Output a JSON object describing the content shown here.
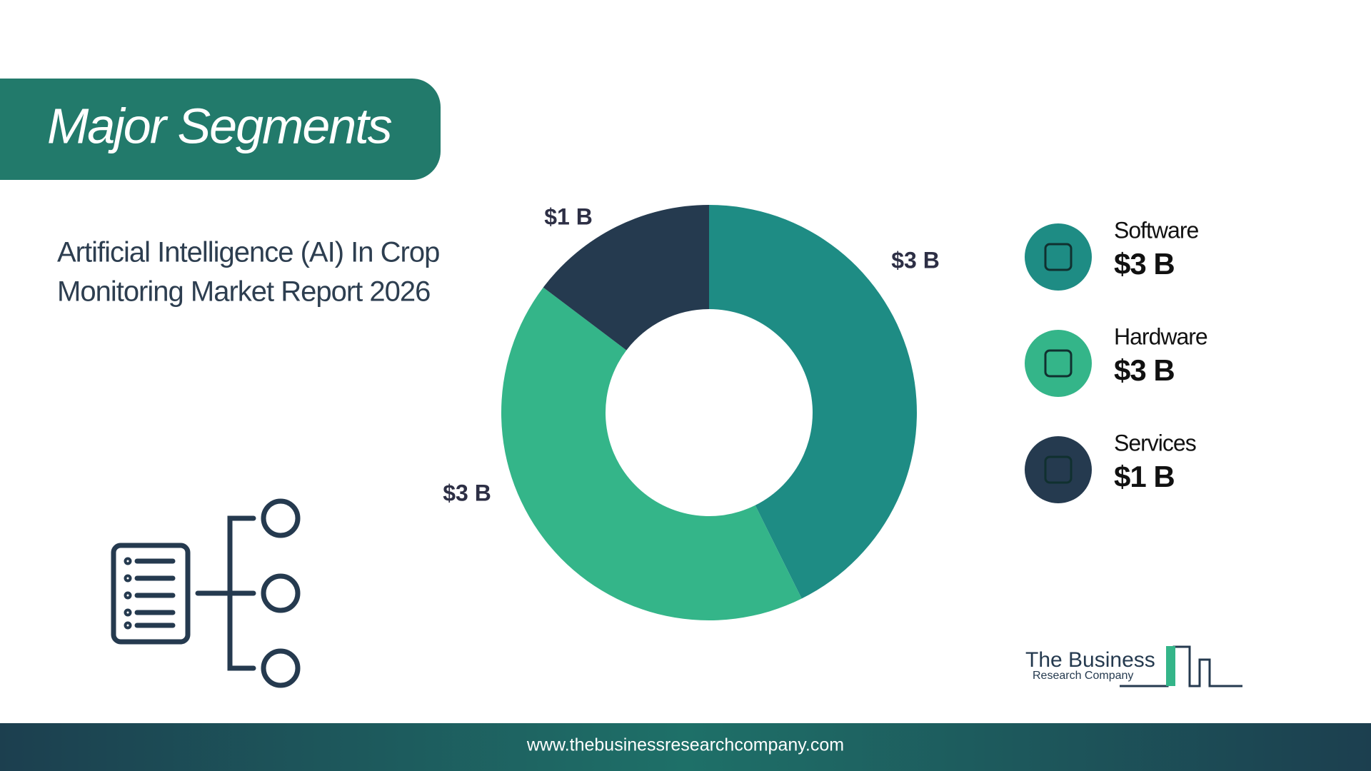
{
  "chart_data": {
    "type": "donut",
    "title": "Major Segments",
    "subtitle": [
      "Artificial Intelligence (AI) In Crop",
      "Monitoring Market Report 2026"
    ],
    "categories": [
      "Software",
      "Hardware",
      "Services"
    ],
    "values": [
      2.9,
      2.9,
      1.0
    ],
    "value_labels": [
      "$3 B",
      "$3 B",
      "$1 B"
    ],
    "colors": [
      "#1e8c84",
      "#34b589",
      "#253a4f"
    ],
    "legend": "right"
  },
  "logo": {
    "line1": "The Business",
    "line2": "Research Company"
  },
  "footer": {
    "url": "www.thebusinessresearchcompany.com"
  }
}
